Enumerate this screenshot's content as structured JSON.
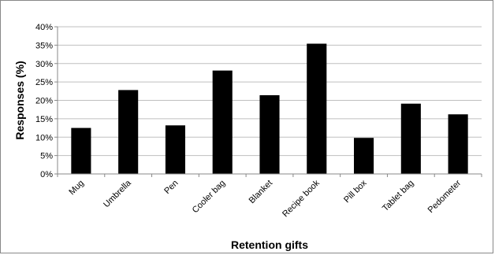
{
  "chart_data": {
    "type": "bar",
    "title": "",
    "xlabel": "Retention gifts",
    "ylabel": "Responses (%)",
    "categories": [
      "Mug",
      "Umbrella",
      "Pen",
      "Cooler bag",
      "Blanket",
      "Recipe book",
      "Pill box",
      "Tablet bag",
      "Pedometer"
    ],
    "values": [
      12.5,
      22.8,
      13.2,
      28.1,
      21.4,
      35.4,
      9.8,
      19.1,
      16.2
    ],
    "ylim": [
      0,
      40
    ],
    "yticks": [
      0,
      5,
      10,
      15,
      20,
      25,
      30,
      35,
      40
    ],
    "ytick_labels": [
      "0%",
      "5%",
      "10%",
      "15%",
      "20%",
      "25%",
      "30%",
      "35%",
      "40%"
    ],
    "grid": true,
    "legend": "none",
    "bar_color": "#000000",
    "grid_color": "#bfbfbf"
  }
}
